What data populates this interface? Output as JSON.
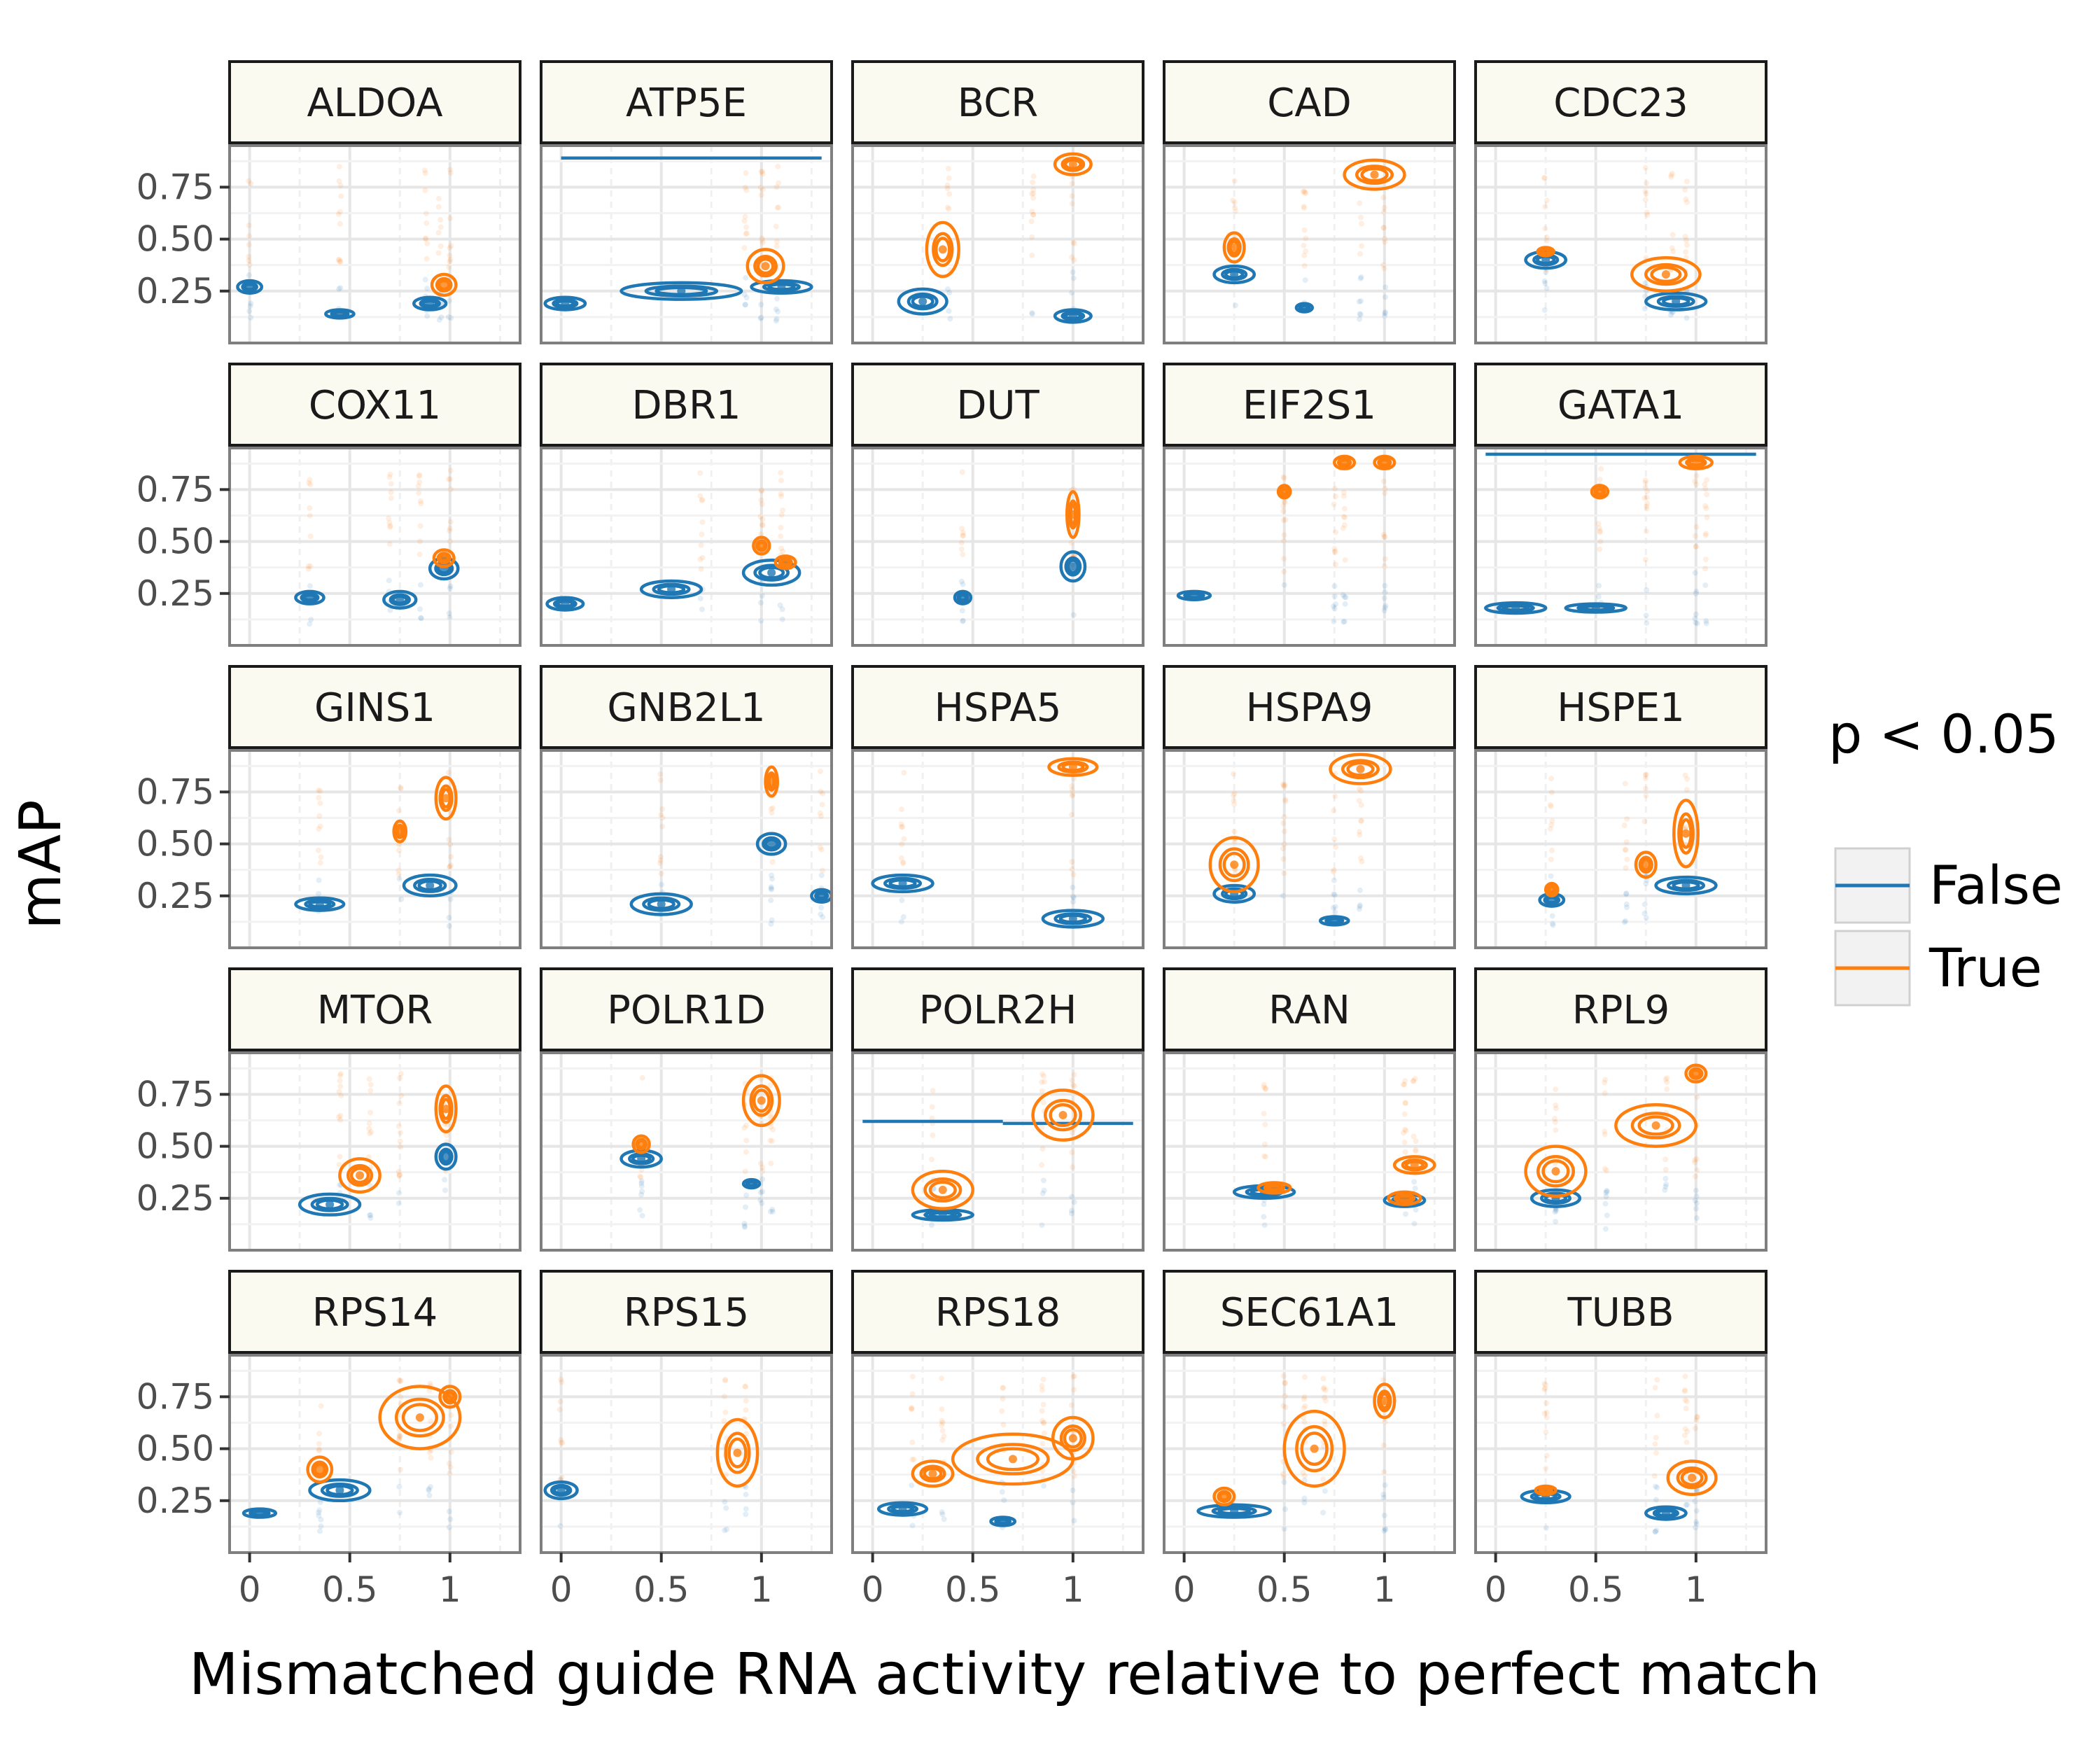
{
  "chart_data": {
    "type": "contour-scatter-facet",
    "xlabel": "Mismatched guide RNA activity relative to perfect match",
    "ylabel": "mAP",
    "xlim": [
      -0.1,
      1.35
    ],
    "ylim": [
      0.0,
      0.95
    ],
    "x_ticks": [
      0,
      0.5,
      1
    ],
    "x_tick_labels": [
      "0",
      "0.5",
      "1"
    ],
    "y_ticks": [
      0.25,
      0.5,
      0.75
    ],
    "y_tick_labels": [
      "0.25",
      "0.50",
      "0.75"
    ],
    "grid": true,
    "legend": {
      "title": "p < 0.05",
      "placement": "right",
      "entries": [
        {
          "label": "False",
          "color": "#1f77b4"
        },
        {
          "label": "True",
          "color": "#ff7f0e"
        }
      ]
    },
    "colors": {
      "False": "#1f77b4",
      "True": "#ff7f0e",
      "strip_fill": "#fafaf0"
    },
    "panels": [
      {
        "gene": "ALDOA",
        "False": [
          {
            "x": 0.0,
            "y": 0.27,
            "sx": 0.06,
            "sy": 0.03
          },
          {
            "x": 0.45,
            "y": 0.14,
            "sx": 0.07,
            "sy": 0.02
          },
          {
            "x": 0.9,
            "y": 0.19,
            "sx": 0.08,
            "sy": 0.03
          }
        ],
        "True": [
          {
            "x": 0.97,
            "y": 0.28,
            "sx": 0.06,
            "sy": 0.05
          }
        ],
        "points": [
          0.0,
          0.45,
          0.88,
          0.95,
          1.0
        ]
      },
      {
        "gene": "ATP5E",
        "False": [
          {
            "x": 0.02,
            "y": 0.19,
            "sx": 0.1,
            "sy": 0.03
          },
          {
            "x": 0.6,
            "y": 0.25,
            "sx": 0.3,
            "sy": 0.04
          },
          {
            "x": 1.1,
            "y": 0.27,
            "sx": 0.15,
            "sy": 0.03
          }
        ],
        "True": [
          {
            "x": 1.02,
            "y": 0.37,
            "sx": 0.09,
            "sy": 0.08
          }
        ],
        "lines": [
          {
            "y": 0.89,
            "x0": 0.0,
            "x1": 1.3,
            "color": "False"
          }
        ],
        "points": [
          0.92,
          1.0,
          1.08
        ]
      },
      {
        "gene": "BCR",
        "False": [
          {
            "x": 0.25,
            "y": 0.2,
            "sx": 0.12,
            "sy": 0.06
          },
          {
            "x": 1.0,
            "y": 0.13,
            "sx": 0.09,
            "sy": 0.03
          }
        ],
        "True": [
          {
            "x": 0.35,
            "y": 0.45,
            "sx": 0.08,
            "sy": 0.13
          },
          {
            "x": 1.0,
            "y": 0.86,
            "sx": 0.09,
            "sy": 0.05
          }
        ],
        "points": [
          0.38,
          0.8,
          1.0
        ]
      },
      {
        "gene": "CAD",
        "False": [
          {
            "x": 0.25,
            "y": 0.33,
            "sx": 0.1,
            "sy": 0.04
          },
          {
            "x": 0.6,
            "y": 0.17,
            "sx": 0.04,
            "sy": 0.02
          }
        ],
        "True": [
          {
            "x": 0.25,
            "y": 0.46,
            "sx": 0.05,
            "sy": 0.07
          },
          {
            "x": 0.95,
            "y": 0.81,
            "sx": 0.15,
            "sy": 0.07
          }
        ],
        "points": [
          0.25,
          0.6,
          0.88,
          1.0
        ]
      },
      {
        "gene": "CDC23",
        "False": [
          {
            "x": 0.25,
            "y": 0.4,
            "sx": 0.1,
            "sy": 0.04
          },
          {
            "x": 0.9,
            "y": 0.2,
            "sx": 0.15,
            "sy": 0.04
          }
        ],
        "True": [
          {
            "x": 0.25,
            "y": 0.44,
            "sx": 0.04,
            "sy": 0.02
          },
          {
            "x": 0.85,
            "y": 0.33,
            "sx": 0.17,
            "sy": 0.08
          }
        ],
        "points": [
          0.25,
          0.75,
          0.88,
          0.95
        ]
      },
      {
        "gene": "COX11",
        "False": [
          {
            "x": 0.3,
            "y": 0.23,
            "sx": 0.07,
            "sy": 0.03
          },
          {
            "x": 0.75,
            "y": 0.22,
            "sx": 0.08,
            "sy": 0.04
          },
          {
            "x": 0.97,
            "y": 0.37,
            "sx": 0.07,
            "sy": 0.05
          }
        ],
        "True": [
          {
            "x": 0.97,
            "y": 0.42,
            "sx": 0.05,
            "sy": 0.04
          }
        ],
        "points": [
          0.3,
          0.7,
          0.85,
          1.0
        ]
      },
      {
        "gene": "DBR1",
        "False": [
          {
            "x": 0.02,
            "y": 0.2,
            "sx": 0.09,
            "sy": 0.03
          },
          {
            "x": 0.55,
            "y": 0.27,
            "sx": 0.15,
            "sy": 0.04
          },
          {
            "x": 1.05,
            "y": 0.35,
            "sx": 0.14,
            "sy": 0.06
          }
        ],
        "True": [
          {
            "x": 1.0,
            "y": 0.48,
            "sx": 0.04,
            "sy": 0.04
          },
          {
            "x": 1.12,
            "y": 0.4,
            "sx": 0.05,
            "sy": 0.03
          }
        ],
        "points": [
          0.7,
          1.0,
          1.1
        ]
      },
      {
        "gene": "DUT",
        "False": [
          {
            "x": 0.45,
            "y": 0.23,
            "sx": 0.04,
            "sy": 0.03
          },
          {
            "x": 1.0,
            "y": 0.38,
            "sx": 0.06,
            "sy": 0.07
          }
        ],
        "True": [
          {
            "x": 1.0,
            "y": 0.63,
            "sx": 0.03,
            "sy": 0.11
          }
        ],
        "points": [
          0.45,
          1.0
        ]
      },
      {
        "gene": "EIF2S1",
        "False": [
          {
            "x": 0.05,
            "y": 0.24,
            "sx": 0.08,
            "sy": 0.02
          }
        ],
        "True": [
          {
            "x": 0.5,
            "y": 0.74,
            "sx": 0.03,
            "sy": 0.03
          },
          {
            "x": 0.8,
            "y": 0.88,
            "sx": 0.05,
            "sy": 0.03
          },
          {
            "x": 1.0,
            "y": 0.88,
            "sx": 0.05,
            "sy": 0.03
          }
        ],
        "points": [
          0.5,
          0.75,
          0.8,
          1.0
        ]
      },
      {
        "gene": "GATA1",
        "False": [
          {
            "x": 0.1,
            "y": 0.18,
            "sx": 0.15,
            "sy": 0.025
          },
          {
            "x": 0.5,
            "y": 0.18,
            "sx": 0.15,
            "sy": 0.02
          }
        ],
        "True": [
          {
            "x": 0.52,
            "y": 0.74,
            "sx": 0.04,
            "sy": 0.03
          },
          {
            "x": 1.0,
            "y": 0.88,
            "sx": 0.08,
            "sy": 0.03
          }
        ],
        "lines": [
          {
            "y": 0.92,
            "x0": -0.05,
            "x1": 1.3,
            "color": "False"
          }
        ],
        "points": [
          0.52,
          0.75,
          1.0,
          1.05
        ]
      },
      {
        "gene": "GINS1",
        "False": [
          {
            "x": 0.35,
            "y": 0.21,
            "sx": 0.12,
            "sy": 0.03
          },
          {
            "x": 0.9,
            "y": 0.3,
            "sx": 0.13,
            "sy": 0.05
          }
        ],
        "True": [
          {
            "x": 0.75,
            "y": 0.56,
            "sx": 0.03,
            "sy": 0.05
          },
          {
            "x": 0.98,
            "y": 0.72,
            "sx": 0.05,
            "sy": 0.1
          }
        ],
        "points": [
          0.35,
          0.75,
          1.0
        ]
      },
      {
        "gene": "GNB2L1",
        "False": [
          {
            "x": 0.5,
            "y": 0.21,
            "sx": 0.15,
            "sy": 0.05
          },
          {
            "x": 1.05,
            "y": 0.5,
            "sx": 0.07,
            "sy": 0.05
          },
          {
            "x": 1.3,
            "y": 0.25,
            "sx": 0.05,
            "sy": 0.03
          }
        ],
        "True": [
          {
            "x": 1.05,
            "y": 0.8,
            "sx": 0.03,
            "sy": 0.07
          }
        ],
        "points": [
          0.5,
          1.05,
          1.3
        ]
      },
      {
        "gene": "HSPA5",
        "False": [
          {
            "x": 0.15,
            "y": 0.31,
            "sx": 0.15,
            "sy": 0.04
          },
          {
            "x": 1.0,
            "y": 0.14,
            "sx": 0.15,
            "sy": 0.04
          }
        ],
        "True": [
          {
            "x": 1.0,
            "y": 0.87,
            "sx": 0.12,
            "sy": 0.04
          }
        ],
        "points": [
          0.15,
          1.0
        ]
      },
      {
        "gene": "HSPA9",
        "False": [
          {
            "x": 0.25,
            "y": 0.26,
            "sx": 0.1,
            "sy": 0.04
          },
          {
            "x": 0.75,
            "y": 0.13,
            "sx": 0.07,
            "sy": 0.02
          }
        ],
        "True": [
          {
            "x": 0.25,
            "y": 0.4,
            "sx": 0.12,
            "sy": 0.13
          },
          {
            "x": 0.88,
            "y": 0.86,
            "sx": 0.15,
            "sy": 0.07
          }
        ],
        "points": [
          0.25,
          0.5,
          0.75,
          0.88
        ]
      },
      {
        "gene": "HSPE1",
        "False": [
          {
            "x": 0.28,
            "y": 0.23,
            "sx": 0.06,
            "sy": 0.03
          },
          {
            "x": 0.95,
            "y": 0.3,
            "sx": 0.15,
            "sy": 0.04
          }
        ],
        "True": [
          {
            "x": 0.28,
            "y": 0.28,
            "sx": 0.03,
            "sy": 0.03
          },
          {
            "x": 0.75,
            "y": 0.4,
            "sx": 0.05,
            "sy": 0.06
          },
          {
            "x": 0.95,
            "y": 0.55,
            "sx": 0.06,
            "sy": 0.16
          }
        ],
        "points": [
          0.28,
          0.65,
          0.75,
          0.95
        ]
      },
      {
        "gene": "MTOR",
        "False": [
          {
            "x": 0.4,
            "y": 0.22,
            "sx": 0.15,
            "sy": 0.05
          },
          {
            "x": 0.98,
            "y": 0.45,
            "sx": 0.05,
            "sy": 0.06
          }
        ],
        "True": [
          {
            "x": 0.55,
            "y": 0.36,
            "sx": 0.1,
            "sy": 0.08
          },
          {
            "x": 0.98,
            "y": 0.68,
            "sx": 0.05,
            "sy": 0.11
          }
        ],
        "points": [
          0.45,
          0.6,
          0.75,
          0.98
        ]
      },
      {
        "gene": "POLR1D",
        "False": [
          {
            "x": 0.4,
            "y": 0.44,
            "sx": 0.1,
            "sy": 0.04
          },
          {
            "x": 0.95,
            "y": 0.32,
            "sx": 0.04,
            "sy": 0.02
          }
        ],
        "True": [
          {
            "x": 0.4,
            "y": 0.51,
            "sx": 0.04,
            "sy": 0.04
          },
          {
            "x": 1.0,
            "y": 0.72,
            "sx": 0.09,
            "sy": 0.12
          }
        ],
        "points": [
          0.4,
          0.92,
          1.0,
          1.05
        ]
      },
      {
        "gene": "POLR2H",
        "False": [
          {
            "x": 0.35,
            "y": 0.17,
            "sx": 0.15,
            "sy": 0.025
          }
        ],
        "True": [
          {
            "x": 0.35,
            "y": 0.29,
            "sx": 0.15,
            "sy": 0.09
          },
          {
            "x": 0.95,
            "y": 0.65,
            "sx": 0.15,
            "sy": 0.12
          }
        ],
        "lines": [
          {
            "y": 0.62,
            "x0": -0.05,
            "x1": 0.65,
            "color": "False"
          },
          {
            "y": 0.61,
            "x0": 0.65,
            "x1": 1.3,
            "color": "False"
          }
        ],
        "points": [
          0.3,
          0.85,
          1.0
        ]
      },
      {
        "gene": "RAN",
        "False": [
          {
            "x": 0.4,
            "y": 0.28,
            "sx": 0.15,
            "sy": 0.03
          },
          {
            "x": 1.1,
            "y": 0.24,
            "sx": 0.1,
            "sy": 0.03
          }
        ],
        "True": [
          {
            "x": 0.45,
            "y": 0.3,
            "sx": 0.08,
            "sy": 0.025
          },
          {
            "x": 1.15,
            "y": 0.41,
            "sx": 0.1,
            "sy": 0.04
          },
          {
            "x": 1.1,
            "y": 0.25,
            "sx": 0.08,
            "sy": 0.03
          }
        ],
        "points": [
          0.4,
          1.1,
          1.15
        ]
      },
      {
        "gene": "RPL9",
        "False": [
          {
            "x": 0.3,
            "y": 0.25,
            "sx": 0.12,
            "sy": 0.04
          }
        ],
        "True": [
          {
            "x": 0.3,
            "y": 0.38,
            "sx": 0.15,
            "sy": 0.12
          },
          {
            "x": 0.8,
            "y": 0.6,
            "sx": 0.2,
            "sy": 0.1
          },
          {
            "x": 1.0,
            "y": 0.85,
            "sx": 0.05,
            "sy": 0.04
          }
        ],
        "points": [
          0.3,
          0.55,
          0.85,
          1.0
        ]
      },
      {
        "gene": "RPS14",
        "False": [
          {
            "x": 0.05,
            "y": 0.19,
            "sx": 0.08,
            "sy": 0.02
          },
          {
            "x": 0.45,
            "y": 0.3,
            "sx": 0.15,
            "sy": 0.05
          }
        ],
        "True": [
          {
            "x": 0.35,
            "y": 0.4,
            "sx": 0.06,
            "sy": 0.06
          },
          {
            "x": 0.85,
            "y": 0.65,
            "sx": 0.2,
            "sy": 0.15
          },
          {
            "x": 1.0,
            "y": 0.75,
            "sx": 0.05,
            "sy": 0.05
          }
        ],
        "points": [
          0.35,
          0.75,
          0.9,
          1.0
        ]
      },
      {
        "gene": "RPS15",
        "False": [
          {
            "x": 0.0,
            "y": 0.3,
            "sx": 0.08,
            "sy": 0.04
          }
        ],
        "True": [
          {
            "x": 0.88,
            "y": 0.48,
            "sx": 0.1,
            "sy": 0.16
          }
        ],
        "points": [
          0.0,
          0.82,
          0.92
        ]
      },
      {
        "gene": "RPS18",
        "False": [
          {
            "x": 0.15,
            "y": 0.21,
            "sx": 0.12,
            "sy": 0.03
          },
          {
            "x": 0.65,
            "y": 0.15,
            "sx": 0.06,
            "sy": 0.02
          }
        ],
        "True": [
          {
            "x": 0.3,
            "y": 0.38,
            "sx": 0.1,
            "sy": 0.06
          },
          {
            "x": 0.7,
            "y": 0.45,
            "sx": 0.3,
            "sy": 0.12
          },
          {
            "x": 1.0,
            "y": 0.55,
            "sx": 0.1,
            "sy": 0.1
          }
        ],
        "points": [
          0.2,
          0.35,
          0.65,
          0.85,
          1.0
        ]
      },
      {
        "gene": "SEC61A1",
        "False": [
          {
            "x": 0.25,
            "y": 0.2,
            "sx": 0.18,
            "sy": 0.03
          }
        ],
        "True": [
          {
            "x": 0.2,
            "y": 0.27,
            "sx": 0.05,
            "sy": 0.04
          },
          {
            "x": 0.65,
            "y": 0.5,
            "sx": 0.15,
            "sy": 0.18
          },
          {
            "x": 1.0,
            "y": 0.73,
            "sx": 0.05,
            "sy": 0.08
          }
        ],
        "points": [
          0.5,
          0.6,
          0.7,
          1.0
        ]
      },
      {
        "gene": "TUBB",
        "False": [
          {
            "x": 0.25,
            "y": 0.27,
            "sx": 0.12,
            "sy": 0.03
          },
          {
            "x": 0.85,
            "y": 0.19,
            "sx": 0.1,
            "sy": 0.03
          }
        ],
        "True": [
          {
            "x": 0.25,
            "y": 0.3,
            "sx": 0.05,
            "sy": 0.02
          },
          {
            "x": 0.98,
            "y": 0.36,
            "sx": 0.12,
            "sy": 0.08
          }
        ],
        "points": [
          0.25,
          0.8,
          0.95,
          1.0
        ]
      }
    ]
  }
}
